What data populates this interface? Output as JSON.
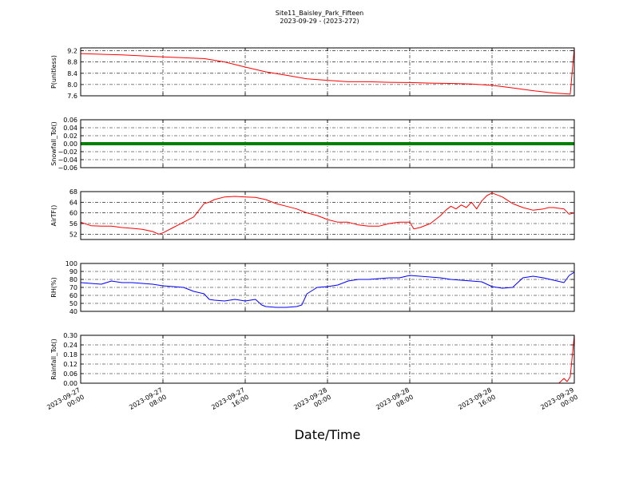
{
  "figure": {
    "title_line1": "Site11_Baisley_Park_Fifteen",
    "title_line2": "2023-09-29 - (2023-272)",
    "xlabel": "Date/Time"
  },
  "chart_data": [
    {
      "type": "line",
      "ylabel": "P(unitless)",
      "ylim": [
        7.6,
        9.3
      ],
      "yticks": [
        7.6,
        8.0,
        8.4,
        8.8,
        9.2
      ],
      "ytick_labels": [
        "7.6",
        "8.0",
        "8.4",
        "8.8",
        "9.2"
      ],
      "color": "#ff0000",
      "style": "line",
      "x": [
        0,
        4,
        8,
        12,
        14,
        16,
        18,
        20,
        22,
        24,
        26,
        28,
        30,
        32,
        34,
        36,
        38,
        40,
        42,
        44,
        46,
        47.6,
        48
      ],
      "y": [
        9.1,
        9.05,
        8.98,
        8.92,
        8.8,
        8.62,
        8.45,
        8.33,
        8.2,
        8.15,
        8.1,
        8.1,
        8.08,
        8.07,
        8.05,
        8.04,
        8.02,
        7.97,
        7.88,
        7.78,
        7.7,
        7.66,
        9.3
      ]
    },
    {
      "type": "line",
      "ylabel": "Snowfall_Tot()",
      "ylim": [
        -0.06,
        0.06
      ],
      "yticks": [
        -0.06,
        -0.04,
        -0.02,
        0.0,
        0.02,
        0.04,
        0.06
      ],
      "ytick_labels": [
        "−0.06",
        "−0.04",
        "−0.02",
        "0.00",
        "0.02",
        "0.04",
        "0.06"
      ],
      "color": "#008000",
      "style": "thick",
      "x": [
        0,
        48
      ],
      "y": [
        0,
        0
      ]
    },
    {
      "type": "line",
      "ylabel": "AirTF()",
      "ylim": [
        50,
        68
      ],
      "yticks": [
        52,
        56,
        60,
        64,
        68
      ],
      "ytick_labels": [
        "52",
        "56",
        "60",
        "64",
        "68"
      ],
      "color": "#ff0000",
      "style": "line",
      "x": [
        0,
        1,
        2,
        3,
        4,
        5,
        6,
        7,
        7.6,
        8,
        8.5,
        9,
        9.5,
        10,
        11,
        12,
        12.5,
        13,
        14,
        15,
        16,
        17,
        18,
        19,
        20,
        21,
        22,
        23,
        24,
        25,
        26,
        27,
        28,
        29,
        30,
        31,
        32,
        32.4,
        33,
        34,
        34.5,
        35,
        35.5,
        36,
        36.5,
        37,
        37.5,
        38,
        38.5,
        39,
        39.5,
        40,
        41,
        42,
        43,
        44,
        45,
        45.5,
        46,
        47,
        47.5,
        48
      ],
      "y": [
        56.5,
        55.2,
        55,
        55,
        54.5,
        54.2,
        53.8,
        53,
        52,
        52.5,
        53.5,
        54.5,
        55.5,
        56.5,
        58.5,
        63.5,
        64,
        65,
        66,
        66.2,
        66,
        65.8,
        65,
        63.5,
        62.5,
        61.5,
        60,
        59,
        57.5,
        56.5,
        56.5,
        55.5,
        55,
        55,
        56,
        56.5,
        56.5,
        54,
        54.5,
        56,
        57.5,
        59,
        61,
        62.5,
        61.5,
        63,
        62,
        64,
        61.5,
        64.5,
        66.5,
        67.5,
        66,
        63.5,
        62,
        61,
        61.5,
        62,
        62,
        61.5,
        59.5,
        60
      ]
    },
    {
      "type": "line",
      "ylabel": "RH(%)",
      "ylim": [
        40,
        100
      ],
      "yticks": [
        40,
        50,
        60,
        70,
        80,
        90,
        100
      ],
      "ytick_labels": [
        "40",
        "50",
        "60",
        "70",
        "80",
        "90",
        "100"
      ],
      "color": "#0000ff",
      "style": "line",
      "x": [
        0,
        1,
        2,
        3,
        4,
        5,
        6,
        7,
        8,
        9,
        10,
        11,
        12,
        12.5,
        13,
        14,
        15,
        16,
        17,
        17.6,
        18,
        19,
        20,
        21,
        21.5,
        22,
        23,
        24,
        25,
        26,
        27,
        28,
        29,
        30,
        31,
        32,
        33,
        34,
        35,
        36,
        37,
        38,
        39,
        40,
        41,
        42,
        43,
        44,
        45,
        46,
        47,
        47.5,
        48
      ],
      "y": [
        76,
        75,
        74,
        78,
        76,
        76,
        75,
        74,
        72,
        71,
        70,
        65,
        62,
        55,
        54,
        53,
        55,
        53,
        55,
        48,
        46,
        45,
        45,
        46,
        48,
        62,
        70,
        71,
        73,
        78,
        80,
        80,
        81,
        82,
        82,
        85,
        84,
        83,
        82,
        80,
        79,
        78,
        77,
        71,
        69,
        70,
        82,
        84,
        82,
        79,
        76,
        85,
        89
      ]
    },
    {
      "type": "line",
      "ylabel": "Rainfall_Tot()",
      "ylim": [
        0,
        0.3
      ],
      "yticks": [
        0.0,
        0.06,
        0.12,
        0.18,
        0.24,
        0.3
      ],
      "ytick_labels": [
        "0.00",
        "0.06",
        "0.12",
        "0.18",
        "0.24",
        "0.30"
      ],
      "color": "#ff0000",
      "style": "line",
      "x": [
        0,
        46.5,
        47,
        47.3,
        47.6,
        48
      ],
      "y": [
        0,
        0,
        0.03,
        0.01,
        0.04,
        0.3
      ]
    }
  ],
  "x_axis": {
    "range": [
      0,
      48
    ],
    "ticks": [
      0,
      8,
      16,
      24,
      32,
      40,
      48
    ],
    "tick_labels_line1": [
      "2023-09-27",
      "2023-09-27",
      "2023-09-27",
      "2023-09-28",
      "2023-09-28",
      "2023-09-28",
      "2023-09-29"
    ],
    "tick_labels_line2": [
      "00:00",
      "08:00",
      "16:00",
      "00:00",
      "08:00",
      "16:00",
      "00:00"
    ],
    "grid": true
  }
}
